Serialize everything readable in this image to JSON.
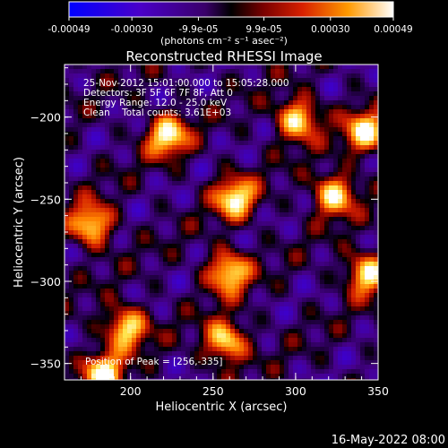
{
  "colorbar": {
    "tick_labels": [
      "-0.00049",
      "-0.00030",
      "-9.9e-05",
      "9.9e-05",
      "0.00030",
      "0.00049"
    ],
    "unit_label": "(photons cm⁻² s⁻¹ asec⁻²)",
    "range": [
      -0.00049,
      0.00049
    ]
  },
  "chart_data": {
    "type": "heatmap",
    "title": "Reconstructed RHESSI Image",
    "xlabel": "Heliocentric X (arcsec)",
    "ylabel": "Heliocentric Y (arcsec)",
    "xlim": [
      160,
      350
    ],
    "ylim": [
      -360,
      -168
    ],
    "x_ticks": [
      200,
      250,
      300,
      350
    ],
    "y_ticks": [
      -200,
      -250,
      -300,
      -350
    ],
    "info_lines": [
      "25-Nov-2012 15:01:00.000 to 15:05:28.000",
      "Detectors: 3F 5F 6F 7F 8F, Att 0",
      "Energy Range: 12.0 - 25.0 keV",
      "Clean    Total counts: 3.61E+03"
    ],
    "peak_label": "Position of Peak = [256,-335]",
    "peak": [
      256,
      -335
    ],
    "bright_sources": [
      {
        "x": 221,
        "y": -210
      },
      {
        "x": 262,
        "y": -248
      },
      {
        "x": 322,
        "y": -246
      },
      {
        "x": 341,
        "y": -208
      },
      {
        "x": 258,
        "y": -293
      },
      {
        "x": 342,
        "y": -294
      },
      {
        "x": 196,
        "y": -327
      },
      {
        "x": 256,
        "y": -335
      },
      {
        "x": 175,
        "y": -264
      },
      {
        "x": 300,
        "y": -200
      },
      {
        "x": 182,
        "y": -355
      }
    ]
  },
  "footer_date": "16-May-2022 08:00"
}
